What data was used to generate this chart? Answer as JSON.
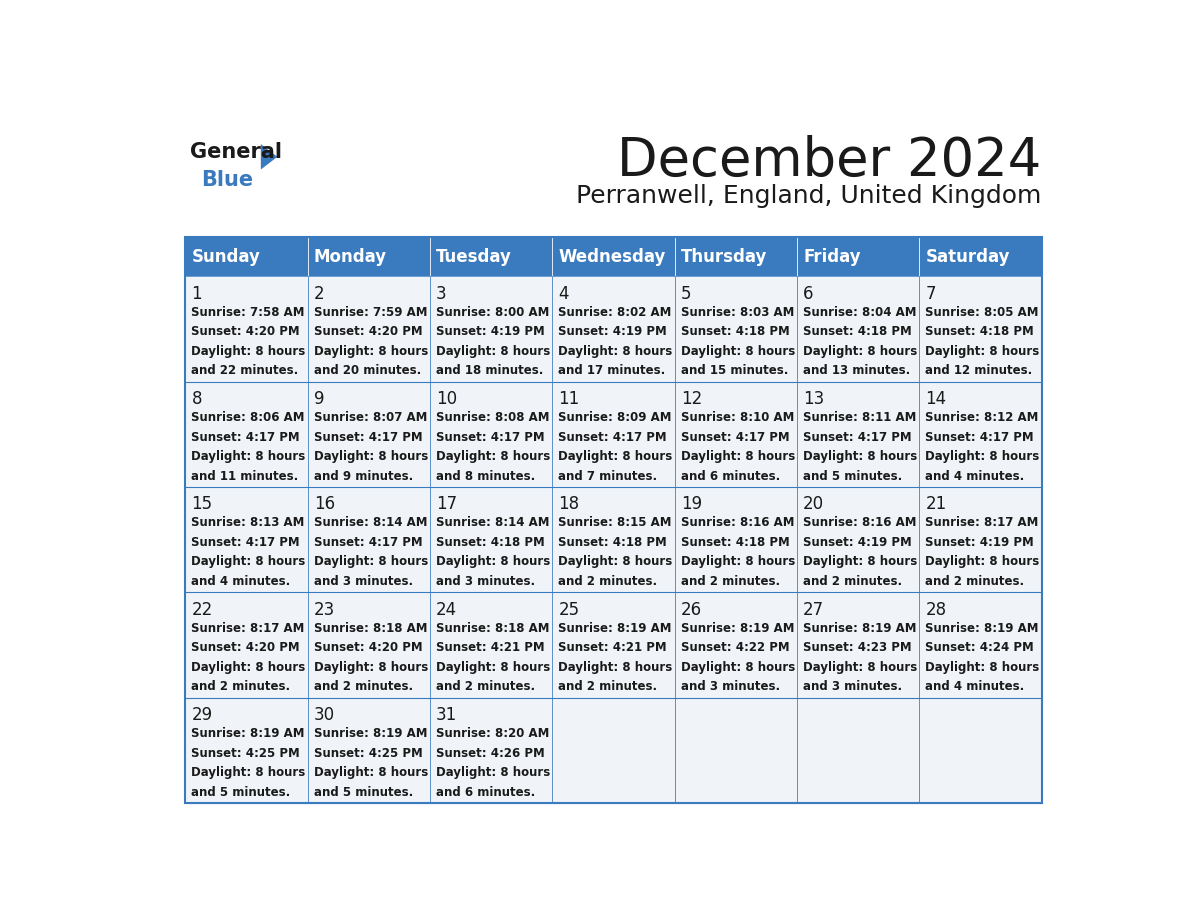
{
  "title": "December 2024",
  "subtitle": "Perranwell, England, United Kingdom",
  "header_bg": "#3a7abf",
  "header_text": "#ffffff",
  "cell_bg_light": "#f0f4f8",
  "cell_bg_white": "#ffffff",
  "border_color": "#3a7abf",
  "days_of_week": [
    "Sunday",
    "Monday",
    "Tuesday",
    "Wednesday",
    "Thursday",
    "Friday",
    "Saturday"
  ],
  "calendar_data": [
    [
      {
        "day": 1,
        "sunrise": "7:58 AM",
        "sunset": "4:20 PM",
        "daylight": "8 hours and 22 minutes."
      },
      {
        "day": 2,
        "sunrise": "7:59 AM",
        "sunset": "4:20 PM",
        "daylight": "8 hours and 20 minutes."
      },
      {
        "day": 3,
        "sunrise": "8:00 AM",
        "sunset": "4:19 PM",
        "daylight": "8 hours and 18 minutes."
      },
      {
        "day": 4,
        "sunrise": "8:02 AM",
        "sunset": "4:19 PM",
        "daylight": "8 hours and 17 minutes."
      },
      {
        "day": 5,
        "sunrise": "8:03 AM",
        "sunset": "4:18 PM",
        "daylight": "8 hours and 15 minutes."
      },
      {
        "day": 6,
        "sunrise": "8:04 AM",
        "sunset": "4:18 PM",
        "daylight": "8 hours and 13 minutes."
      },
      {
        "day": 7,
        "sunrise": "8:05 AM",
        "sunset": "4:18 PM",
        "daylight": "8 hours and 12 minutes."
      }
    ],
    [
      {
        "day": 8,
        "sunrise": "8:06 AM",
        "sunset": "4:17 PM",
        "daylight": "8 hours and 11 minutes."
      },
      {
        "day": 9,
        "sunrise": "8:07 AM",
        "sunset": "4:17 PM",
        "daylight": "8 hours and 9 minutes."
      },
      {
        "day": 10,
        "sunrise": "8:08 AM",
        "sunset": "4:17 PM",
        "daylight": "8 hours and 8 minutes."
      },
      {
        "day": 11,
        "sunrise": "8:09 AM",
        "sunset": "4:17 PM",
        "daylight": "8 hours and 7 minutes."
      },
      {
        "day": 12,
        "sunrise": "8:10 AM",
        "sunset": "4:17 PM",
        "daylight": "8 hours and 6 minutes."
      },
      {
        "day": 13,
        "sunrise": "8:11 AM",
        "sunset": "4:17 PM",
        "daylight": "8 hours and 5 minutes."
      },
      {
        "day": 14,
        "sunrise": "8:12 AM",
        "sunset": "4:17 PM",
        "daylight": "8 hours and 4 minutes."
      }
    ],
    [
      {
        "day": 15,
        "sunrise": "8:13 AM",
        "sunset": "4:17 PM",
        "daylight": "8 hours and 4 minutes."
      },
      {
        "day": 16,
        "sunrise": "8:14 AM",
        "sunset": "4:17 PM",
        "daylight": "8 hours and 3 minutes."
      },
      {
        "day": 17,
        "sunrise": "8:14 AM",
        "sunset": "4:18 PM",
        "daylight": "8 hours and 3 minutes."
      },
      {
        "day": 18,
        "sunrise": "8:15 AM",
        "sunset": "4:18 PM",
        "daylight": "8 hours and 2 minutes."
      },
      {
        "day": 19,
        "sunrise": "8:16 AM",
        "sunset": "4:18 PM",
        "daylight": "8 hours and 2 minutes."
      },
      {
        "day": 20,
        "sunrise": "8:16 AM",
        "sunset": "4:19 PM",
        "daylight": "8 hours and 2 minutes."
      },
      {
        "day": 21,
        "sunrise": "8:17 AM",
        "sunset": "4:19 PM",
        "daylight": "8 hours and 2 minutes."
      }
    ],
    [
      {
        "day": 22,
        "sunrise": "8:17 AM",
        "sunset": "4:20 PM",
        "daylight": "8 hours and 2 minutes."
      },
      {
        "day": 23,
        "sunrise": "8:18 AM",
        "sunset": "4:20 PM",
        "daylight": "8 hours and 2 minutes."
      },
      {
        "day": 24,
        "sunrise": "8:18 AM",
        "sunset": "4:21 PM",
        "daylight": "8 hours and 2 minutes."
      },
      {
        "day": 25,
        "sunrise": "8:19 AM",
        "sunset": "4:21 PM",
        "daylight": "8 hours and 2 minutes."
      },
      {
        "day": 26,
        "sunrise": "8:19 AM",
        "sunset": "4:22 PM",
        "daylight": "8 hours and 3 minutes."
      },
      {
        "day": 27,
        "sunrise": "8:19 AM",
        "sunset": "4:23 PM",
        "daylight": "8 hours and 3 minutes."
      },
      {
        "day": 28,
        "sunrise": "8:19 AM",
        "sunset": "4:24 PM",
        "daylight": "8 hours and 4 minutes."
      }
    ],
    [
      {
        "day": 29,
        "sunrise": "8:19 AM",
        "sunset": "4:25 PM",
        "daylight": "8 hours and 5 minutes."
      },
      {
        "day": 30,
        "sunrise": "8:19 AM",
        "sunset": "4:25 PM",
        "daylight": "8 hours and 5 minutes."
      },
      {
        "day": 31,
        "sunrise": "8:20 AM",
        "sunset": "4:26 PM",
        "daylight": "8 hours and 6 minutes."
      },
      null,
      null,
      null,
      null
    ]
  ],
  "logo_text_general": "General",
  "logo_text_blue": "Blue",
  "logo_color_general": "#1a1a1a",
  "logo_color_blue": "#3a7abf"
}
